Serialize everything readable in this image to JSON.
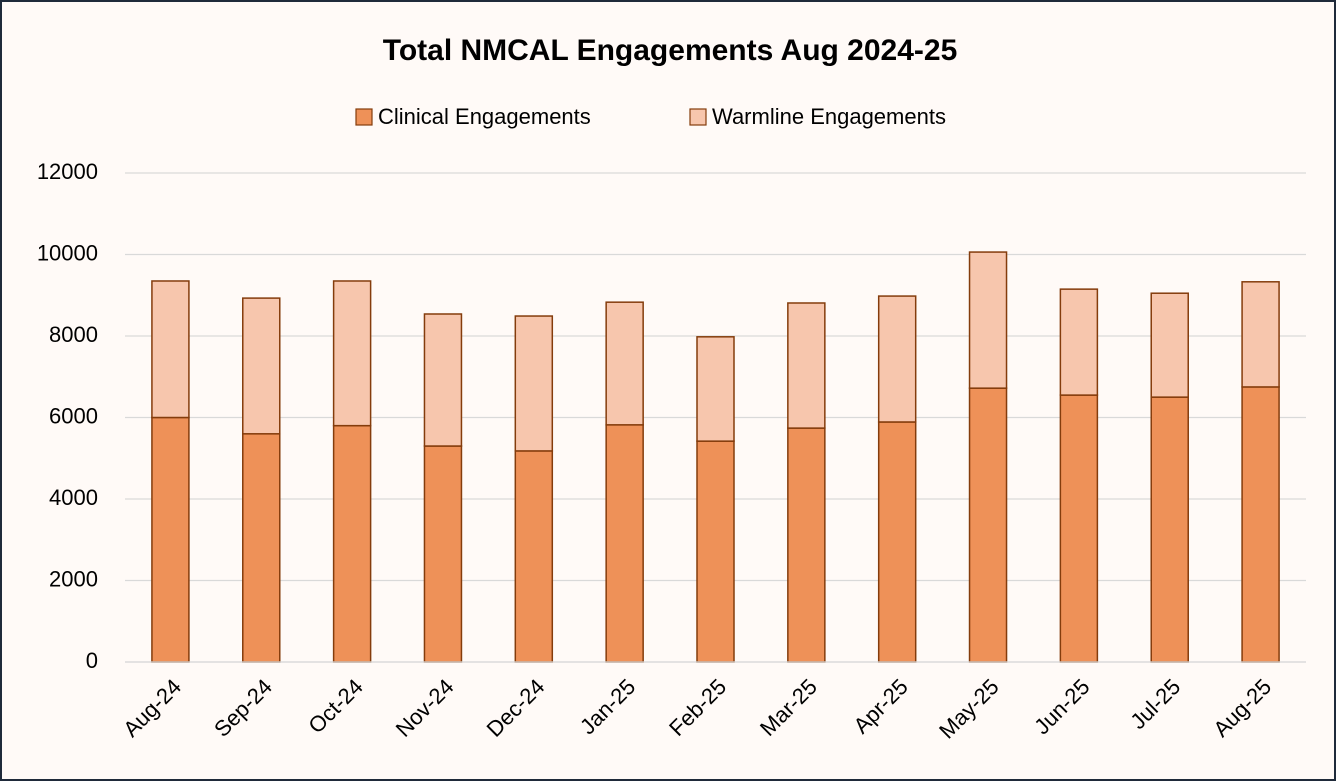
{
  "chart_data": {
    "type": "stacked_bar",
    "title": "Total NMCAL Engagements Aug 2024-25",
    "categories": [
      "Aug-24",
      "Sep-24",
      "Oct-24",
      "Nov-24",
      "Dec-24",
      "Jan-25",
      "Feb-25",
      "Mar-25",
      "Apr-25",
      "May-25",
      "Jun-25",
      "Jul-25",
      "Aug-25"
    ],
    "series": [
      {
        "name": "Clinical Engagements",
        "color": "#ee9158",
        "values": [
          6000,
          5600,
          5800,
          5300,
          5180,
          5820,
          5420,
          5740,
          5890,
          6720,
          6550,
          6500,
          6750
        ]
      },
      {
        "name": "Warmline Engagements",
        "color": "#f7c6ad",
        "values": [
          3350,
          3330,
          3550,
          3240,
          3310,
          3010,
          2560,
          3070,
          3090,
          3340,
          2600,
          2550,
          2580
        ]
      }
    ],
    "ylim": [
      0,
      12000
    ],
    "yticks": [
      0,
      2000,
      4000,
      6000,
      8000,
      10000,
      12000
    ],
    "grid": true,
    "legend": "top"
  }
}
